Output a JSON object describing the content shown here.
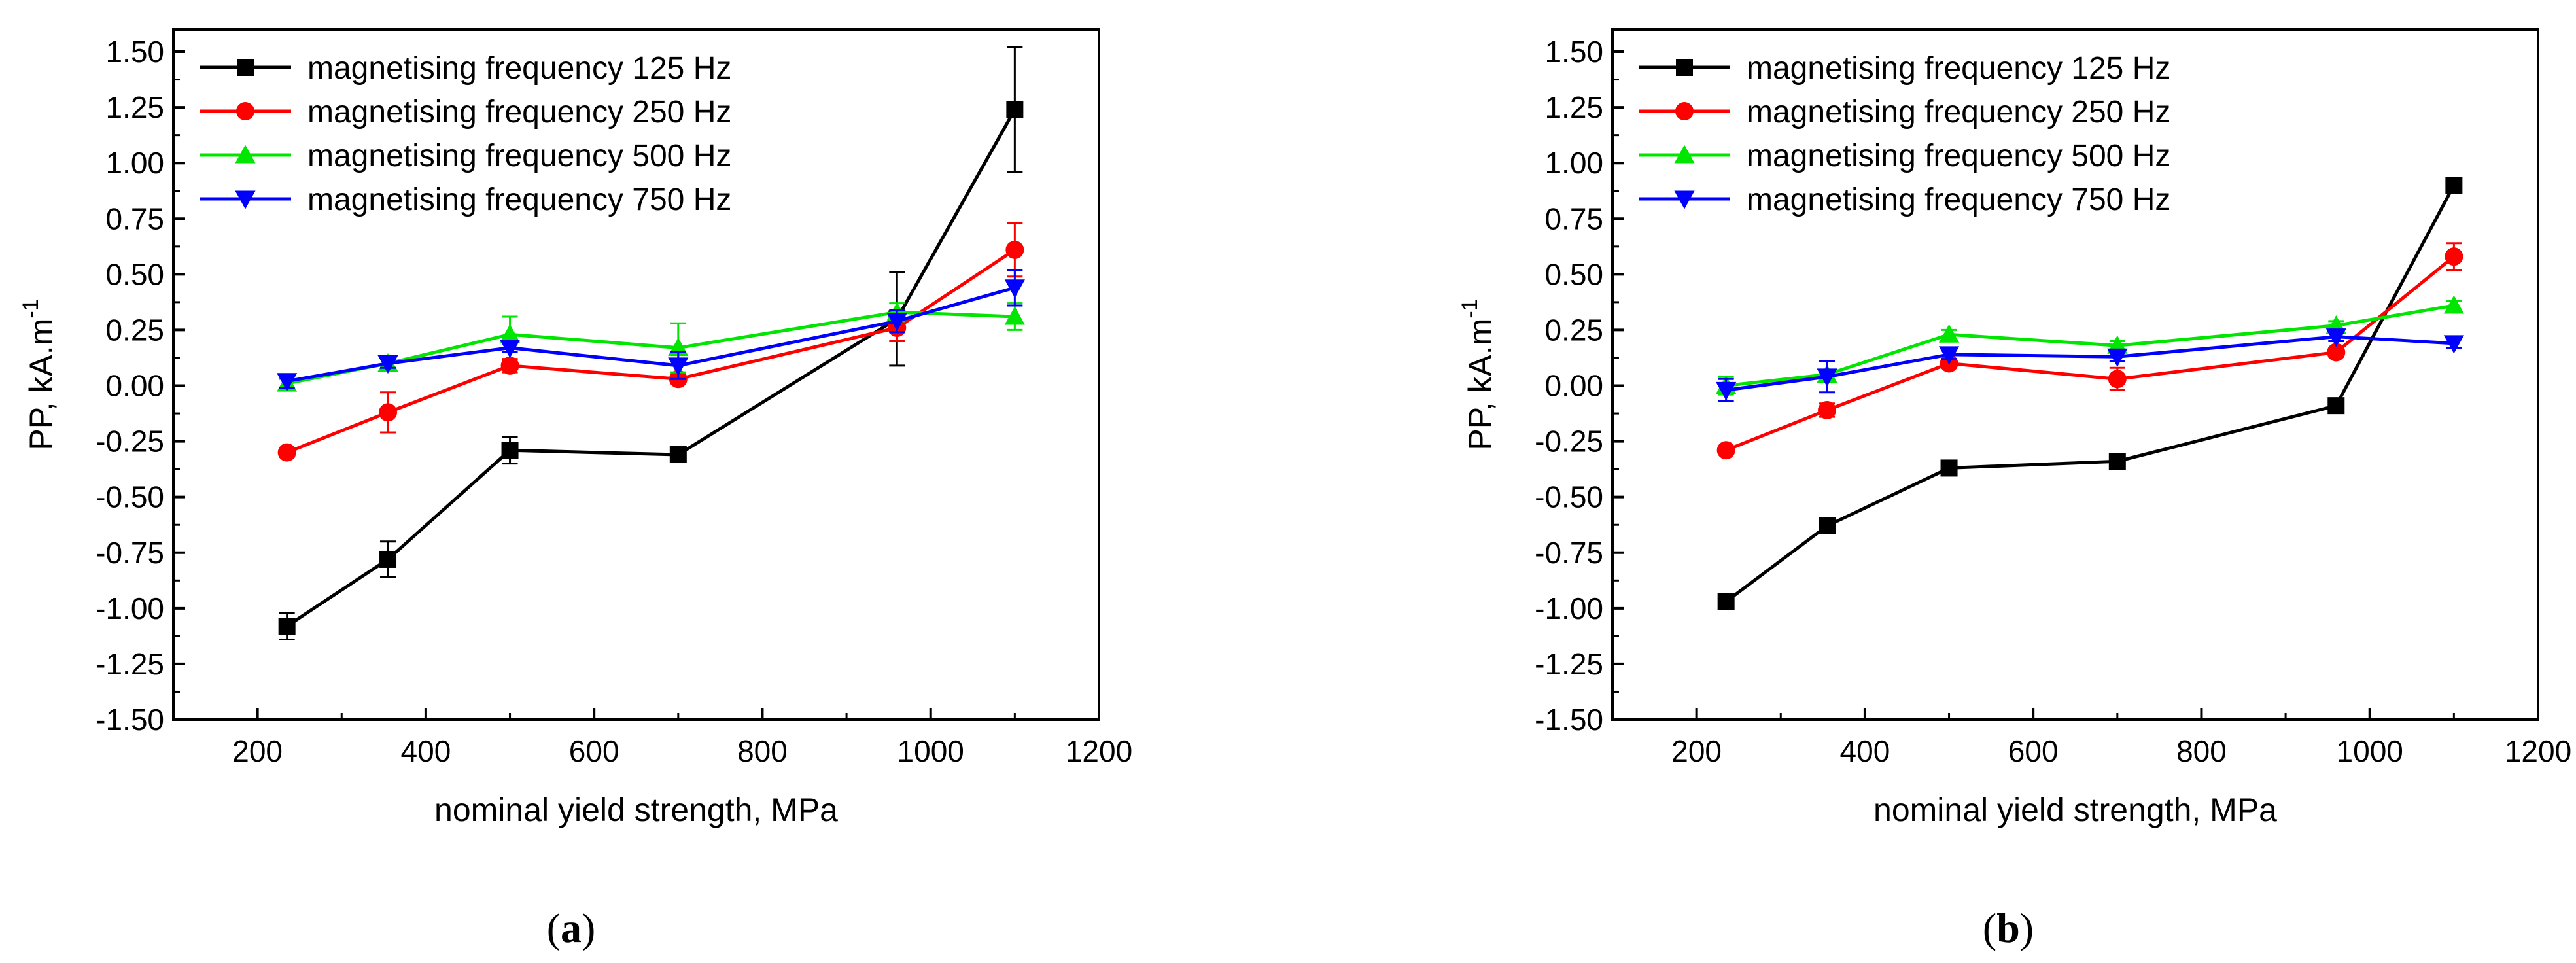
{
  "chart_data": [
    {
      "type": "line",
      "panel_label": {
        "open": "(",
        "letter": "a",
        "close": ")"
      },
      "xlabel": "nominal yield strength, MPa",
      "ylabel": "PP, kA.m",
      "ylabel_sup": "-1",
      "xlim": [
        100,
        1200
      ],
      "ylim": [
        -1.5,
        1.6
      ],
      "xticks": [
        200,
        400,
        600,
        800,
        1000,
        1200
      ],
      "yticks": [
        -1.5,
        -1.25,
        -1.0,
        -0.75,
        -0.5,
        -0.25,
        0.0,
        0.25,
        0.5,
        0.75,
        1.0,
        1.25,
        1.5
      ],
      "ytick_labels": [
        "-1.50",
        "-1.25",
        "-1.00",
        "-0.75",
        "-0.50",
        "-0.25",
        "0.00",
        "0.25",
        "0.50",
        "0.75",
        "1.00",
        "1.25",
        "1.50"
      ],
      "legend_position": "top-left",
      "x": [
        235,
        355,
        500,
        700,
        960,
        1100
      ],
      "series": [
        {
          "name": "magnetising frequency 125 Hz",
          "color": "#000000",
          "marker": "square",
          "values": [
            -1.08,
            -0.78,
            -0.29,
            -0.31,
            0.3,
            1.24
          ],
          "errors": [
            0.06,
            0.08,
            0.06,
            0.03,
            0.21,
            0.28
          ]
        },
        {
          "name": "magnetising frequency 250 Hz",
          "color": "#ff0000",
          "marker": "circle",
          "values": [
            -0.3,
            -0.12,
            0.09,
            0.03,
            0.26,
            0.61
          ],
          "errors": [
            0.02,
            0.09,
            0.03,
            0.02,
            0.06,
            0.12
          ]
        },
        {
          "name": "magnetising frequency 500 Hz",
          "color": "#00e600",
          "marker": "triangle-up",
          "values": [
            0.01,
            0.1,
            0.23,
            0.17,
            0.33,
            0.31
          ],
          "errors": [
            0.02,
            0.03,
            0.08,
            0.11,
            0.04,
            0.06
          ]
        },
        {
          "name": "magnetising frequency 750 Hz",
          "color": "#0000ff",
          "marker": "triangle-down",
          "values": [
            0.02,
            0.1,
            0.17,
            0.09,
            0.29,
            0.44
          ],
          "errors": [
            0.03,
            0.02,
            0.02,
            0.06,
            0.05,
            0.08
          ]
        }
      ]
    },
    {
      "type": "line",
      "panel_label": {
        "open": "(",
        "letter": "b",
        "close": ")"
      },
      "xlabel": "nominal yield strength, MPa",
      "ylabel": "PP, kA.m",
      "ylabel_sup": "-1",
      "xlim": [
        100,
        1200
      ],
      "ylim": [
        -1.5,
        1.6
      ],
      "xticks": [
        200,
        400,
        600,
        800,
        1000,
        1200
      ],
      "yticks": [
        -1.5,
        -1.25,
        -1.0,
        -0.75,
        -0.5,
        -0.25,
        0.0,
        0.25,
        0.5,
        0.75,
        1.0,
        1.25,
        1.5
      ],
      "ytick_labels": [
        "-1.50",
        "-1.25",
        "-1.00",
        "-0.75",
        "-0.50",
        "-0.25",
        "0.00",
        "0.25",
        "0.50",
        "0.75",
        "1.00",
        "1.25",
        "1.50"
      ],
      "legend_position": "top-left",
      "x": [
        235,
        355,
        500,
        700,
        960,
        1100
      ],
      "series": [
        {
          "name": "magnetising frequency 125 Hz",
          "color": "#000000",
          "marker": "square",
          "values": [
            -0.97,
            -0.63,
            -0.37,
            -0.34,
            -0.09,
            0.9
          ],
          "errors": [
            0.03,
            0.02,
            0.03,
            0.03,
            0.02,
            0.03
          ]
        },
        {
          "name": "magnetising frequency 250 Hz",
          "color": "#ff0000",
          "marker": "circle",
          "values": [
            -0.29,
            -0.11,
            0.1,
            0.03,
            0.15,
            0.58
          ],
          "errors": [
            0.01,
            0.03,
            0.02,
            0.05,
            0.02,
            0.06
          ]
        },
        {
          "name": "magnetising frequency 500 Hz",
          "color": "#00e600",
          "marker": "triangle-up",
          "values": [
            0.0,
            0.05,
            0.23,
            0.18,
            0.27,
            0.36
          ],
          "errors": [
            0.04,
            0.02,
            0.02,
            0.02,
            0.02,
            0.02
          ]
        },
        {
          "name": "magnetising frequency 750 Hz",
          "color": "#0000ff",
          "marker": "triangle-down",
          "values": [
            -0.02,
            0.04,
            0.14,
            0.13,
            0.22,
            0.19
          ],
          "errors": [
            0.05,
            0.07,
            0.02,
            0.02,
            0.02,
            0.02
          ]
        }
      ]
    }
  ]
}
